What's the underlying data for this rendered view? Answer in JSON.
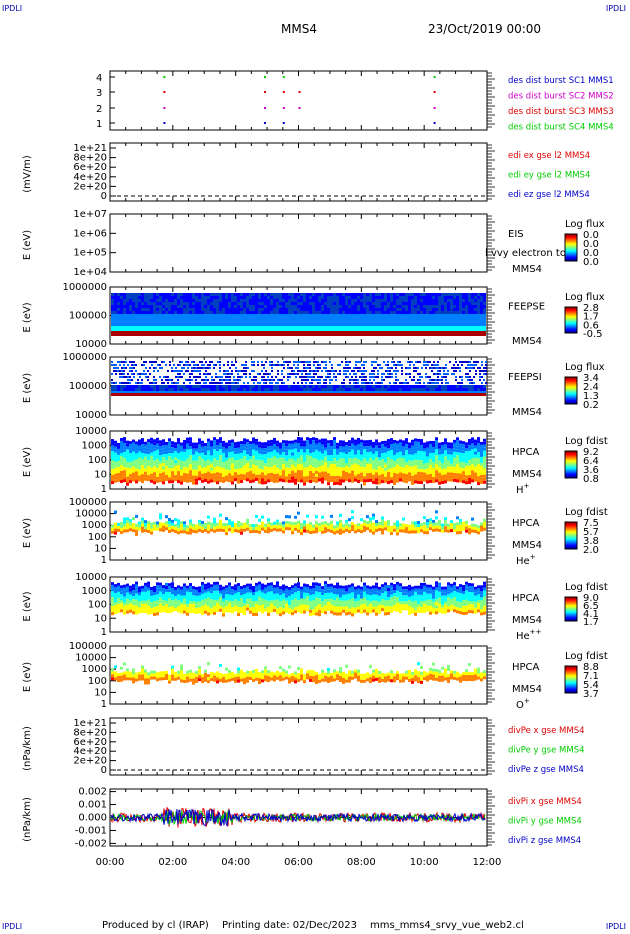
{
  "corners": {
    "tl": "IPDLI",
    "tr": "IPDLI",
    "bl": "IPDLI",
    "br": "IPDLI"
  },
  "header": {
    "spacecraft": "MMS4",
    "date": "23/Oct/2019 00:00"
  },
  "footer": {
    "produced_by": "Produced by cl (IRAP)",
    "printing_date": "Printing date: 02/Dec/2023",
    "script": "mms_mms4_srvy_vue_web2.cl"
  },
  "colors": {
    "red": "#dd0000",
    "green": "#00cc00",
    "blue": "#0000cc",
    "magenta": "#cc00cc"
  },
  "time_axis": {
    "ticks": [
      "00:00",
      "02:00",
      "04:00",
      "06:00",
      "08:00",
      "10:00",
      "12:00"
    ]
  },
  "chart_data": [
    {
      "type": "scatter",
      "panel": "burst",
      "yticks": [
        "4",
        "3",
        "2",
        "1"
      ],
      "legend": [
        {
          "text": "des dist burst SC1 MMS1",
          "color": "#0000cc"
        },
        {
          "text": "des dist burst SC2 MMS2",
          "color": "#cc00cc"
        },
        {
          "text": "des dist burst SC3 MMS3",
          "color": "#dd0000"
        },
        {
          "text": "des dist burst SC4 MMS4",
          "color": "#00cc00"
        }
      ],
      "burst_times_h": [
        1.7,
        4.9,
        5.5,
        6.0,
        10.3
      ]
    },
    {
      "type": "line",
      "panel": "edi",
      "ylabel": "(mV/m)",
      "yticks": [
        "1e+21",
        "8e+20",
        "6e+20",
        "4e+20",
        "2e+20",
        "0"
      ],
      "legend": [
        {
          "text": "edi ex gse l2 MMS4",
          "color": "#dd0000"
        },
        {
          "text": "edi ey gse l2 MMS4",
          "color": "#00cc00"
        },
        {
          "text": "edi ez gse l2 MMS4",
          "color": "#0000cc"
        }
      ]
    },
    {
      "type": "heatmap",
      "panel": "eis",
      "ylabel": "E (eV)",
      "yticks": [
        "1e+07",
        "1e+06",
        "1e+05",
        "1e+04"
      ],
      "right_label": [
        "EIS",
        "MMS4"
      ],
      "overlay": "ĺ vvy electron to",
      "cb_title": "Log flux",
      "cb_ticks": [
        "0.0",
        "0.0",
        "0.0",
        "0.0"
      ]
    },
    {
      "type": "heatmap",
      "panel": "feepse",
      "ylabel": "E (eV)",
      "yticks": [
        "1000000",
        "100000",
        "10000"
      ],
      "right_label": [
        "FEEPSE",
        "MMS4"
      ],
      "cb_title": "Log flux",
      "cb_ticks": [
        "2.8",
        "1.7",
        "0.6",
        "-0.5"
      ]
    },
    {
      "type": "heatmap",
      "panel": "feepsi",
      "ylabel": "E (eV)",
      "yticks": [
        "1000000",
        "100000",
        "10000"
      ],
      "right_label": [
        "FEEPSI",
        "MMS4"
      ],
      "cb_title": "Log flux",
      "cb_ticks": [
        "3.4",
        "2.4",
        "1.3",
        "0.2"
      ]
    },
    {
      "type": "heatmap",
      "panel": "hpca_h",
      "ylabel": "E (eV)",
      "yticks": [
        "10000",
        "1000",
        "100",
        "10",
        "1"
      ],
      "right_label": [
        "HPCA",
        "MMS4",
        "H",
        "+"
      ],
      "cb_title": "Log fdist",
      "cb_ticks": [
        "9.2",
        "6.4",
        "3.6",
        "0.8"
      ]
    },
    {
      "type": "heatmap",
      "panel": "hpca_he",
      "ylabel": "E (eV)",
      "yticks": [
        "100000",
        "10000",
        "1000",
        "100",
        "10",
        "1"
      ],
      "right_label": [
        "HPCA",
        "MMS4",
        "He",
        "+"
      ],
      "cb_title": "Log fdist",
      "cb_ticks": [
        "7.5",
        "5.7",
        "3.8",
        "2.0"
      ]
    },
    {
      "type": "heatmap",
      "panel": "hpca_hepp",
      "ylabel": "E (eV)",
      "yticks": [
        "10000",
        "1000",
        "100",
        "10",
        "1"
      ],
      "right_label": [
        "HPCA",
        "MMS4",
        "He",
        "++"
      ],
      "cb_title": "Log fdist",
      "cb_ticks": [
        "9.0",
        "6.5",
        "4.1",
        "1.7"
      ]
    },
    {
      "type": "heatmap",
      "panel": "hpca_o",
      "ylabel": "E (eV)",
      "yticks": [
        "100000",
        "10000",
        "1000",
        "100",
        "10",
        "1"
      ],
      "right_label": [
        "HPCA",
        "MMS4",
        "O",
        "+"
      ],
      "cb_title": "Log fdist",
      "cb_ticks": [
        "8.8",
        "7.1",
        "5.4",
        "3.7"
      ]
    },
    {
      "type": "line",
      "panel": "divpe",
      "ylabel": "(nPa/km)",
      "yticks": [
        "1e+21",
        "8e+20",
        "6e+20",
        "4e+20",
        "2e+20",
        "0"
      ],
      "legend": [
        {
          "text": "divPe x gse MMS4",
          "color": "#dd0000"
        },
        {
          "text": "divPe y gse MMS4",
          "color": "#00cc00"
        },
        {
          "text": "divPe z gse MMS4",
          "color": "#0000cc"
        }
      ]
    },
    {
      "type": "line",
      "panel": "divpi",
      "ylabel": "(nPa/km)",
      "yticks": [
        "0.002",
        "0.001",
        "0.000",
        "-0.001",
        "-0.002"
      ],
      "ylim": [
        -0.0022,
        0.0022
      ],
      "legend": [
        {
          "text": "divPi x gse MMS4",
          "color": "#dd0000"
        },
        {
          "text": "divPi y gse MMS4",
          "color": "#00cc00"
        },
        {
          "text": "divPi z gse MMS4",
          "color": "#0000cc"
        }
      ]
    }
  ]
}
